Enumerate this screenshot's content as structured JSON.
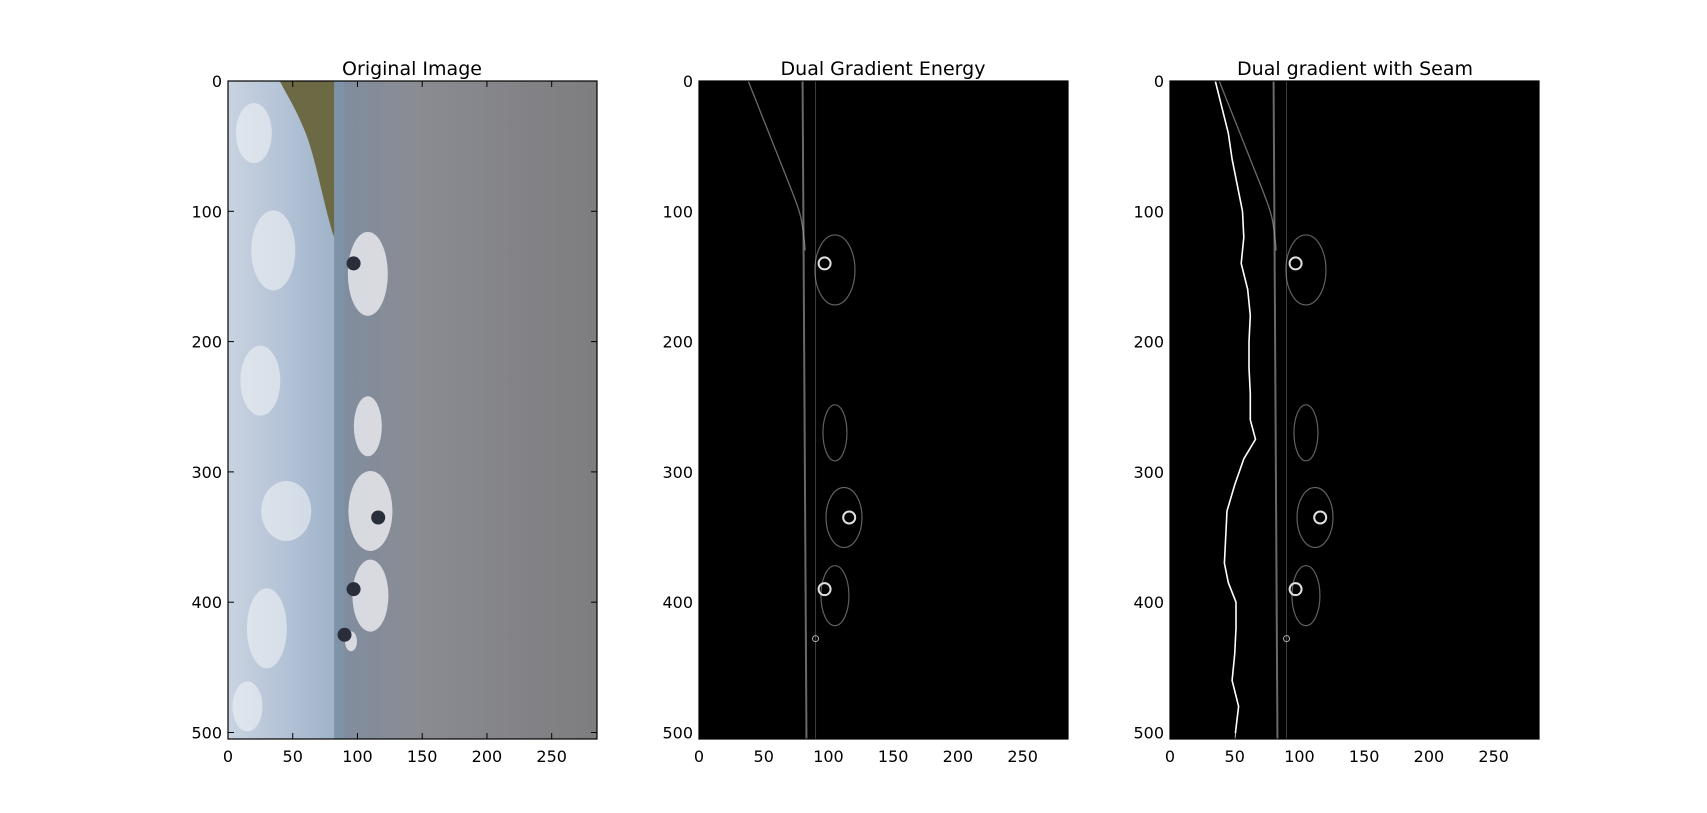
{
  "chart_data": [
    {
      "type": "image",
      "title": "Original Image",
      "xlim": [
        0,
        285
      ],
      "ylim": [
        505,
        0
      ],
      "xticks": [
        0,
        50,
        100,
        150,
        200,
        250
      ],
      "yticks": [
        0,
        100,
        200,
        300,
        400,
        500
      ],
      "xlabel": "",
      "ylabel": "",
      "content": "photo",
      "colors": {
        "sky": "#b9c8da",
        "horizon_water": "#7f93a8",
        "water": "#858790",
        "hill": "#6c6a45",
        "spray": "#e6e8ec"
      }
    },
    {
      "type": "image",
      "title": "Dual Gradient Energy",
      "xlim": [
        0,
        285
      ],
      "ylim": [
        505,
        0
      ],
      "xticks": [
        0,
        50,
        100,
        150,
        200,
        250
      ],
      "yticks": [
        0,
        100,
        200,
        300,
        400,
        500
      ],
      "xlabel": "",
      "ylabel": "",
      "content": "energy",
      "colors": {
        "background": "#000000",
        "edge": "#b0b0b0"
      }
    },
    {
      "type": "image",
      "title": "Dual gradient with Seam",
      "xlim": [
        0,
        285
      ],
      "ylim": [
        505,
        0
      ],
      "xticks": [
        0,
        50,
        100,
        150,
        200,
        250
      ],
      "yticks": [
        0,
        100,
        200,
        300,
        400,
        500
      ],
      "xlabel": "",
      "ylabel": "",
      "content": "energy",
      "colors": {
        "background": "#000000",
        "edge": "#b0b0b0",
        "seam": "#ffffff"
      },
      "seam": {
        "y": [
          0,
          20,
          40,
          60,
          80,
          100,
          120,
          140,
          160,
          180,
          200,
          220,
          240,
          260,
          275,
          290,
          310,
          330,
          350,
          370,
          385,
          400,
          420,
          440,
          460,
          480,
          505
        ],
        "x": [
          35,
          40,
          45,
          48,
          52,
          56,
          57,
          55,
          60,
          62,
          61,
          61,
          62,
          62,
          66,
          57,
          50,
          44,
          43,
          42,
          45,
          51,
          51,
          50,
          48,
          53,
          50
        ]
      }
    }
  ]
}
